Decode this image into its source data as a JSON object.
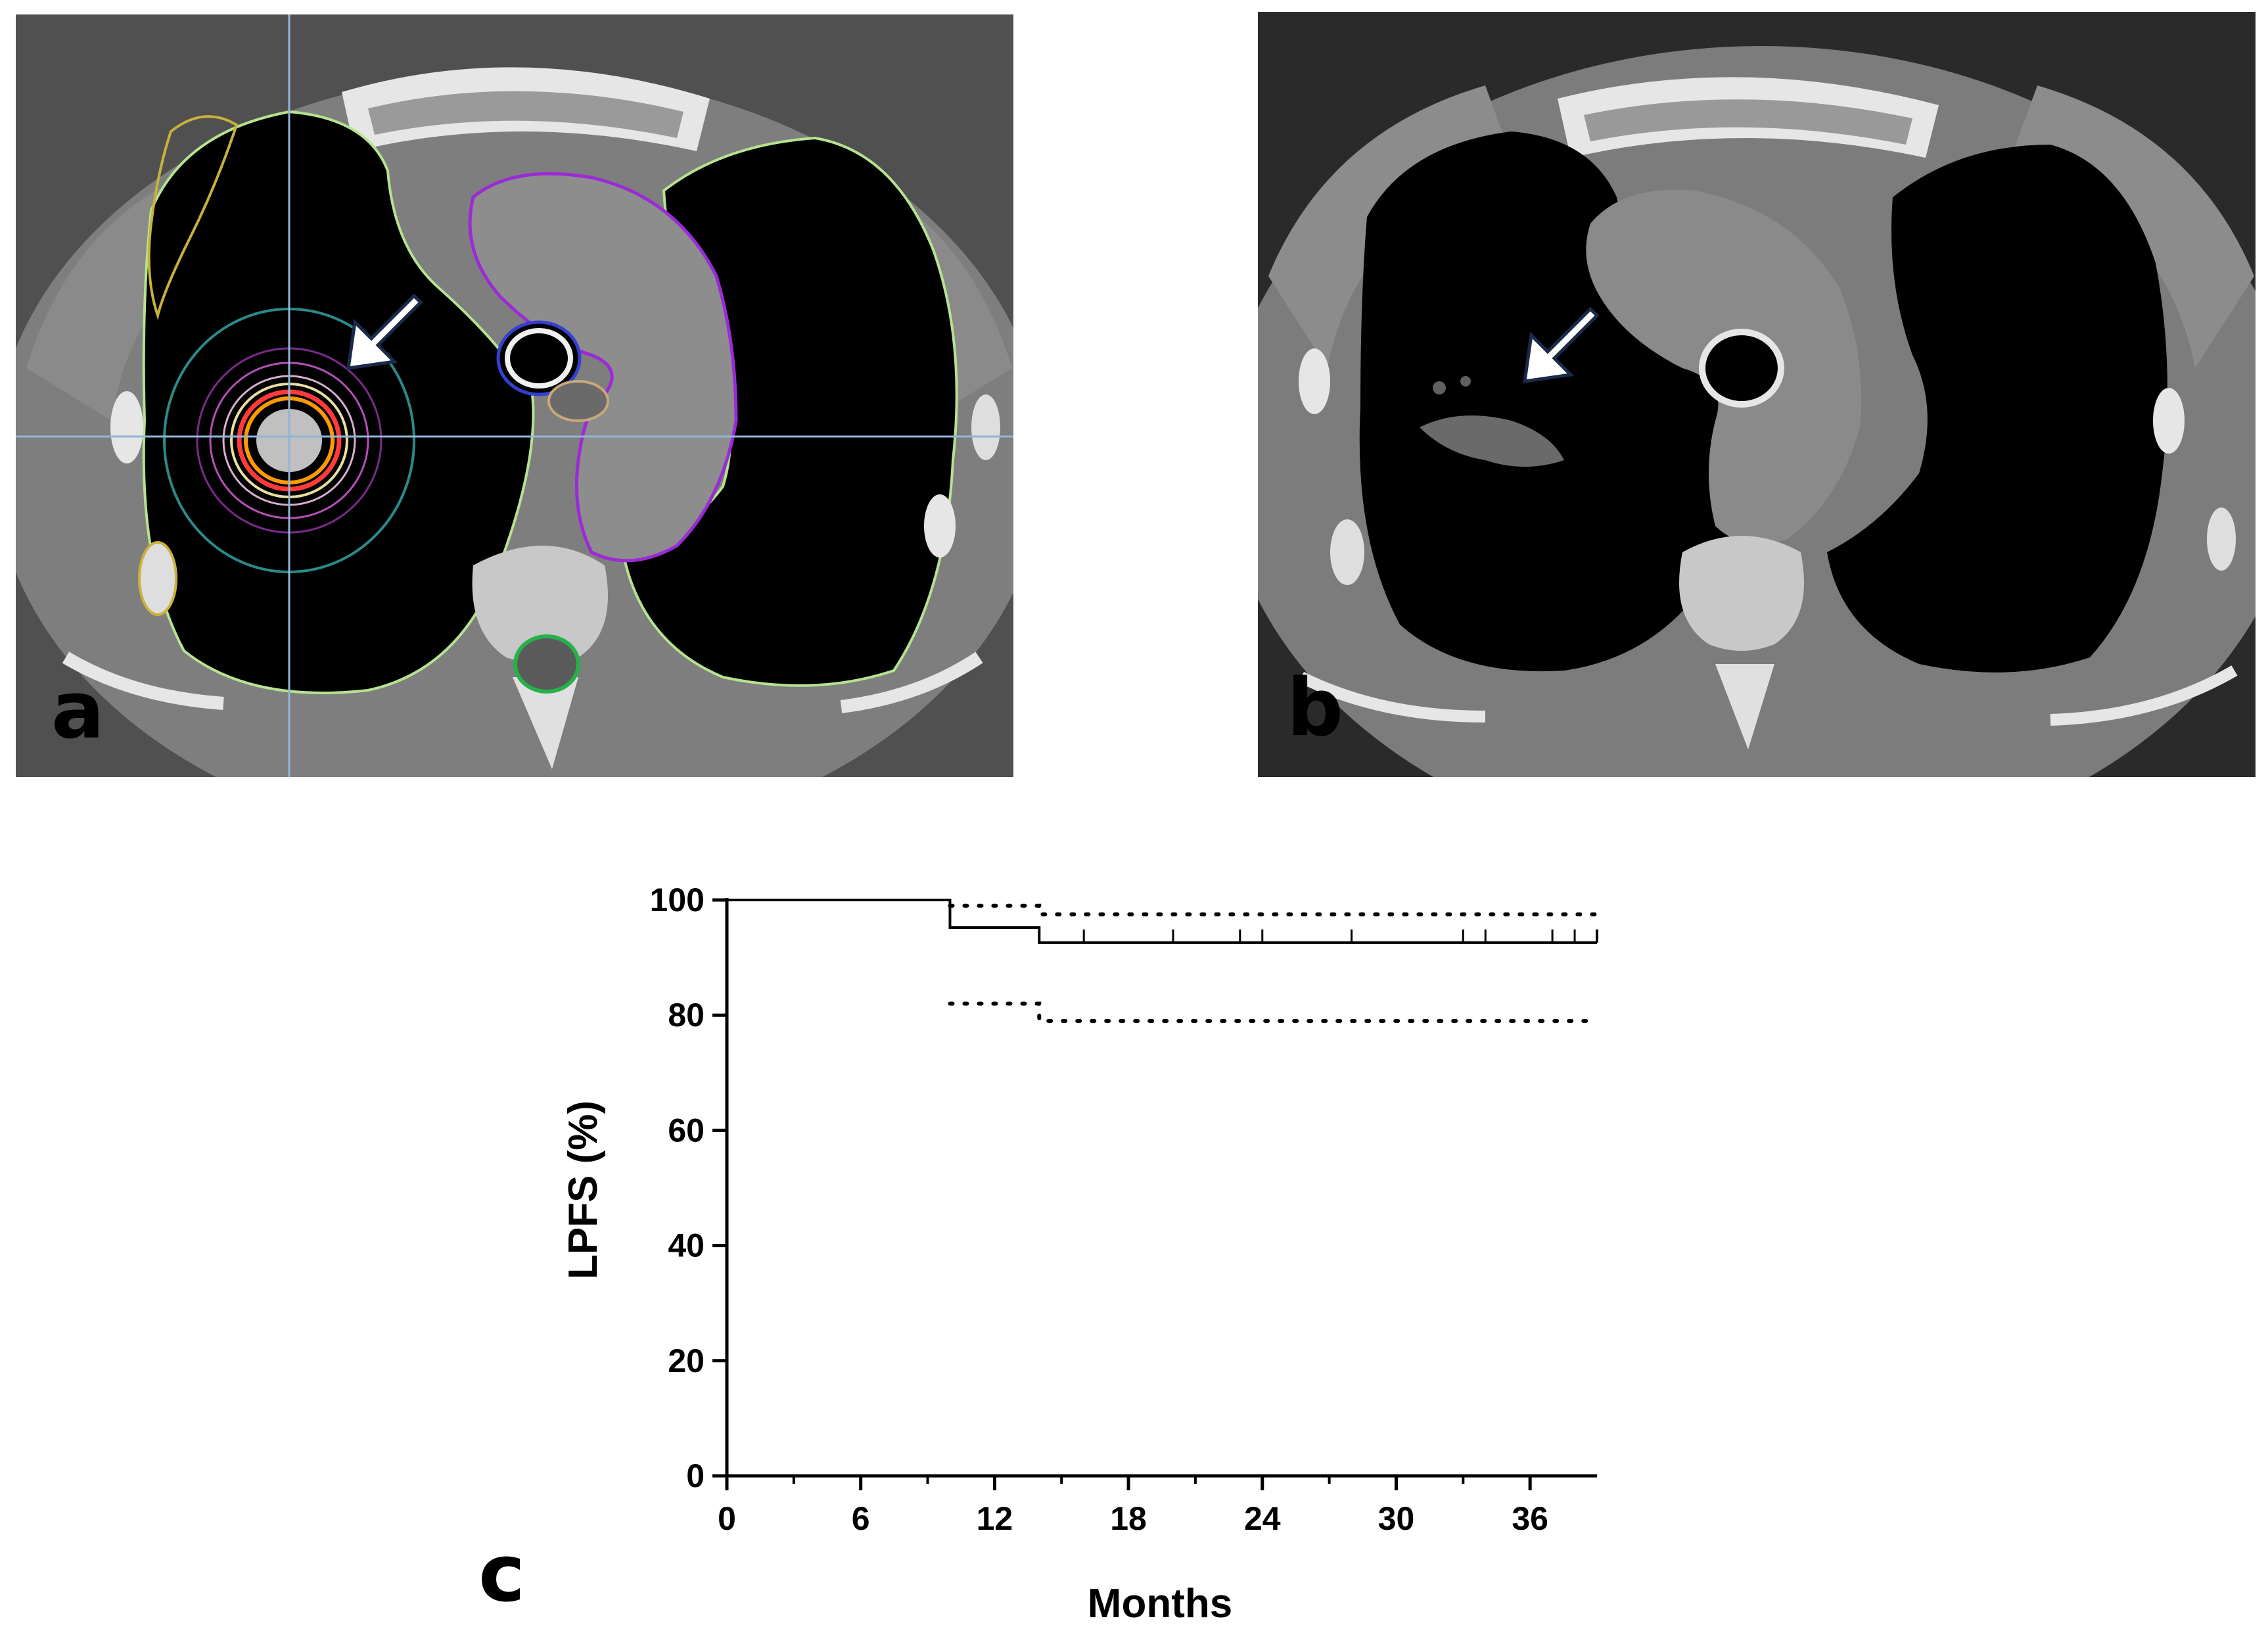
{
  "panels": {
    "a_letter": "a",
    "b_letter": "b",
    "c_letter": "c"
  },
  "images": {
    "a": {
      "kind": "axial CT with radiotherapy dose contours and target arrow",
      "arrow_icon": "arrow-down-left-icon"
    },
    "b": {
      "kind": "axial follow-up CT with arrow",
      "arrow_icon": "arrow-down-left-icon"
    }
  },
  "colors": {
    "ct_background": "#7e7e7e",
    "lung_black": "#000000",
    "bone": "#e6e6e6",
    "contour_green": "#b6e38f",
    "contour_purple": "#9a2bd6",
    "contour_yellow": "#c9b23a",
    "contour_teal": "#2b8a8a",
    "dose_orange": "#ff9a00",
    "dose_red": "#ff3b3b",
    "crosshair": "#8fb6d9"
  },
  "chart_data": {
    "type": "line",
    "title": "",
    "xlabel": "Months",
    "ylabel": "LPFS (%)",
    "xlim": [
      0,
      39
    ],
    "ylim": [
      0,
      100
    ],
    "xticks": [
      0,
      6,
      12,
      18,
      24,
      30,
      36
    ],
    "yticks": [
      0,
      20,
      40,
      60,
      80,
      100
    ],
    "grid": false,
    "legend": "none",
    "series": [
      {
        "style": "solid-step",
        "x": [
          0,
          10,
          14,
          39
        ],
        "y": [
          100,
          95.2,
          92.6,
          92.6
        ],
        "censor_ticks_x": [
          16,
          20,
          23,
          24,
          28,
          33,
          34,
          37,
          38
        ]
      },
      {
        "style": "dotted-step",
        "x": [
          10,
          14,
          39
        ],
        "y": [
          99,
          97.5,
          97.5
        ]
      },
      {
        "style": "dotted-step",
        "x": [
          10,
          14,
          39
        ],
        "y": [
          82,
          79,
          79
        ]
      }
    ]
  }
}
